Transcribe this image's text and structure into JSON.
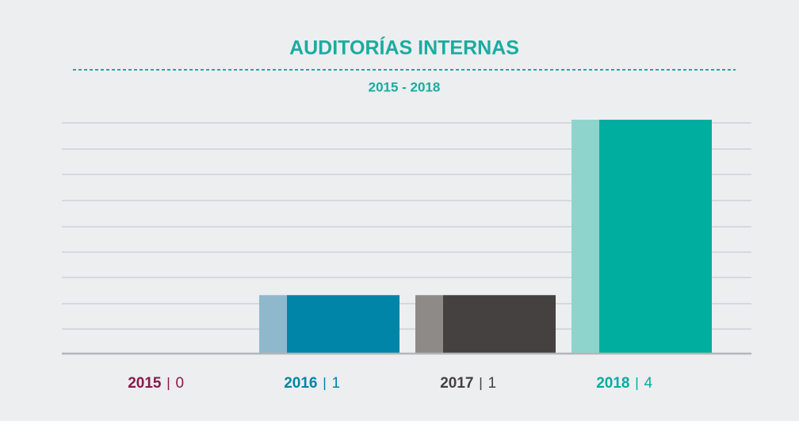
{
  "chart_data": {
    "type": "bar",
    "title": "AUDITORÍAS INTERNAS",
    "subtitle": "2015 - 2018",
    "categories": [
      "2015",
      "2016",
      "2017",
      "2018"
    ],
    "values": [
      0,
      1,
      1,
      4
    ],
    "colors": [
      "#8b1a4a",
      "#0085a8",
      "#454141",
      "#00ae9f"
    ],
    "accent_colors": [
      "#c98fa8",
      "#8fb8cc",
      "#8e8a88",
      "#8fd4cc"
    ],
    "ylim": [
      0,
      4
    ]
  }
}
